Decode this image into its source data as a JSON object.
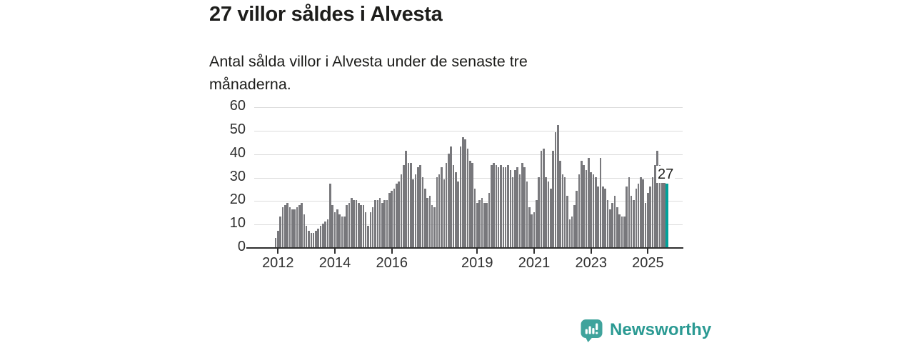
{
  "header": {
    "title": "27 villor såldes i Alvesta",
    "subtitle": "Antal sålda villor i Alvesta under de senaste tre månaderna."
  },
  "chart_data": {
    "type": "bar",
    "title": "27 villor såldes i Alvesta",
    "subtitle": "Antal sålda villor i Alvesta under de senaste tre månaderna.",
    "frequency": "monthly",
    "start_month": "2011-12",
    "values": [
      4,
      7,
      13,
      17,
      18,
      19,
      17,
      16,
      16,
      17,
      18,
      19,
      14,
      9,
      7,
      6,
      6,
      7,
      8,
      9,
      10,
      11,
      12,
      27,
      18,
      15,
      16,
      14,
      13,
      13,
      18,
      19,
      21,
      20,
      20,
      19,
      18,
      18,
      15,
      9,
      15,
      17,
      20,
      20,
      21,
      19,
      20,
      20,
      23,
      24,
      25,
      27,
      28,
      31,
      35,
      41,
      36,
      36,
      29,
      31,
      34,
      35,
      30,
      25,
      21,
      22,
      18,
      17,
      30,
      31,
      34,
      29,
      36,
      40,
      43,
      35,
      32,
      28,
      43,
      47,
      46,
      42,
      37,
      36,
      25,
      19,
      20,
      21,
      19,
      19,
      23,
      35,
      36,
      35,
      34,
      35,
      34,
      34,
      35,
      33,
      30,
      33,
      34,
      31,
      36,
      34,
      28,
      17,
      14,
      15,
      20,
      30,
      41,
      42,
      30,
      28,
      25,
      41,
      49,
      52,
      37,
      31,
      30,
      22,
      12,
      13,
      18,
      24,
      31,
      37,
      35,
      33,
      38,
      32,
      31,
      30,
      26,
      38,
      26,
      25,
      20,
      16,
      19,
      22,
      17,
      14,
      13,
      13,
      26,
      30,
      22,
      20,
      25,
      27,
      30,
      29,
      19,
      23,
      26,
      30,
      35,
      41,
      35,
      30,
      28,
      27
    ],
    "highlight_index": 165,
    "highlight_value_label": "27",
    "ylim": [
      0,
      60
    ],
    "y_ticks": [
      0,
      10,
      20,
      30,
      40,
      50,
      60
    ],
    "x_ticks": [
      {
        "label": "2012",
        "month_index": 1
      },
      {
        "label": "2014",
        "month_index": 25
      },
      {
        "label": "2016",
        "month_index": 49
      },
      {
        "label": "2019",
        "month_index": 85
      },
      {
        "label": "2021",
        "month_index": 109
      },
      {
        "label": "2023",
        "month_index": 133
      },
      {
        "label": "2025",
        "month_index": 157
      }
    ],
    "grid": true,
    "legend": null,
    "bar_color": "#78787c",
    "highlight_color": "#00a29a"
  },
  "footer": {
    "brand": "Newsworthy",
    "logo_icon": "newsworthy-speech-bubble-bar-chart-icon",
    "brand_color": "#2b9a93"
  }
}
